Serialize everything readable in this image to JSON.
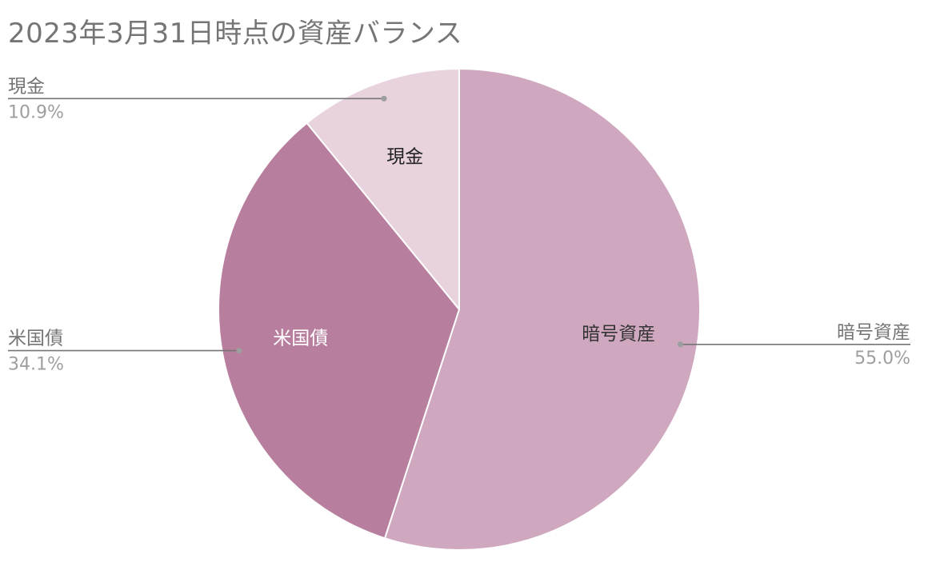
{
  "chart_data": {
    "type": "pie",
    "title": "2023年3月31日時点の資産バランス",
    "start_angle_deg": 0,
    "direction": "clockwise",
    "slices": [
      {
        "name": "暗号資産",
        "percent": 55.0,
        "label": "55.0%",
        "color": "#cfa8bf",
        "inner_text_color": "#333333"
      },
      {
        "name": "米国債",
        "percent": 34.1,
        "label": "34.1%",
        "color": "#b77f9d",
        "inner_text_color": "#ffffff"
      },
      {
        "name": "現金",
        "percent": 10.9,
        "label": "10.9%",
        "color": "#e7d2de",
        "inner_text_color": "#222222"
      }
    ],
    "legend": "none",
    "callout_colors": {
      "line": "#757575",
      "name": "#757575",
      "percent": "#9e9e9e"
    }
  }
}
